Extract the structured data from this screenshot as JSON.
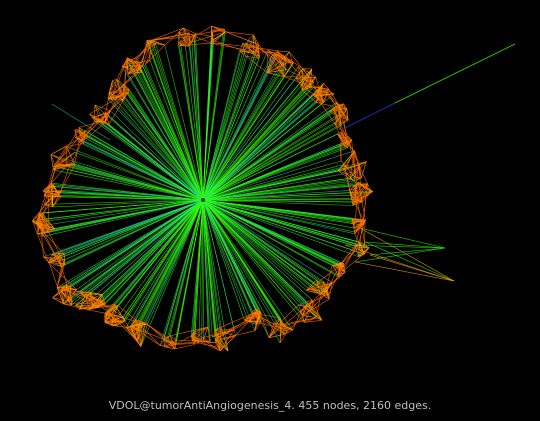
{
  "caption": "VDOL@tumorAntiAngiogenesis_4. 455 nodes, 2160 edges.",
  "graph": {
    "node_count": 455,
    "edge_count": 2160,
    "colors": {
      "background": "#000000",
      "hub_spokes": "#33ff00",
      "hub_spokes_alt": "#22ccaa",
      "ring_edges": "#ff6a00",
      "ring_edges_alt": "#ffaa00",
      "long_edge": "#2233cc",
      "caption_text": "#bfbfbf"
    }
  }
}
